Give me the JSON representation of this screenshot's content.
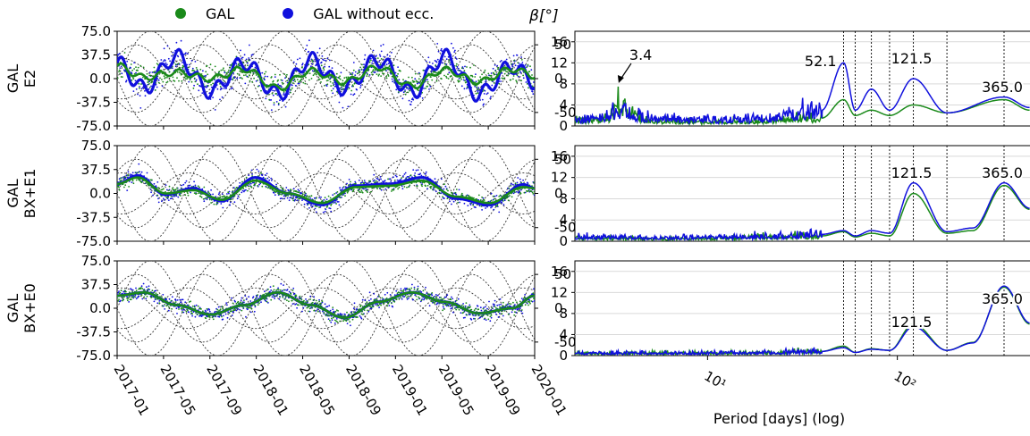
{
  "legend": [
    {
      "label": "GAL",
      "color": "#1a8a1a"
    },
    {
      "label": "GAL without ecc.",
      "color": "#1010dd"
    }
  ],
  "beta_label": "β[°]",
  "colors": {
    "gal": "#1a8a1a",
    "gal_no_ecc": "#1010dd",
    "beta_curves": "#333333",
    "grid": "#d9d9d9"
  },
  "chart_data": [
    {
      "type": "scatter",
      "panel": "time-series",
      "row_label": [
        "GAL",
        "E2"
      ],
      "x_tick_labels": [
        "2017-01",
        "2017-05",
        "2017-09",
        "2018-01",
        "2018-05",
        "2018-09",
        "2019-01",
        "2019-05",
        "2019-09",
        "2020-01"
      ],
      "xlim": [
        "2016-11-20",
        "2020-01-01"
      ],
      "ylim": [
        -75.0,
        75.0
      ],
      "y_tick_labels": [
        "75.0",
        "37.5",
        "0.0",
        "-37.5",
        "-75.0"
      ],
      "y2_label": "β[°]",
      "y2_tick_labels": [
        "50",
        "0",
        "-50"
      ],
      "series": [
        {
          "name": "GAL",
          "smooth": {
            "x": [
              "2016-11-20",
              "2017-02-01",
              "2017-05-01",
              "2017-08-01",
              "2017-11-01",
              "2018-02-01",
              "2018-05-01",
              "2018-08-01",
              "2018-11-01",
              "2019-02-01",
              "2019-05-01",
              "2019-08-01",
              "2019-11-01",
              "2020-01-01"
            ],
            "y": [
              20,
              2,
              10,
              0,
              15,
              -15,
              12,
              -5,
              18,
              -12,
              14,
              -5,
              15,
              5
            ]
          }
        },
        {
          "name": "GAL without ecc.",
          "smooth": {
            "x": [
              "2016-11-20",
              "2017-02-01",
              "2017-05-01",
              "2017-08-01",
              "2017-11-01",
              "2018-02-01",
              "2018-05-01",
              "2018-08-01",
              "2018-11-01",
              "2019-02-01",
              "2019-05-01",
              "2019-08-01",
              "2019-11-01",
              "2020-01-01"
            ],
            "y": [
              25,
              -15,
              35,
              -20,
              25,
              -25,
              30,
              -15,
              30,
              -22,
              35,
              -25,
              20,
              -5
            ]
          }
        }
      ],
      "beta_curves": {
        "amplitudes": [
          70,
          50,
          30
        ],
        "period_days": 365
      }
    },
    {
      "type": "scatter",
      "panel": "time-series",
      "row_label": [
        "GAL",
        "BX+E1"
      ],
      "x_tick_labels": [
        "2017-01",
        "2017-05",
        "2017-09",
        "2018-01",
        "2018-05",
        "2018-09",
        "2019-01",
        "2019-05",
        "2019-09",
        "2020-01"
      ],
      "xlim": [
        "2016-11-20",
        "2020-01-01"
      ],
      "ylim": [
        -75.0,
        75.0
      ],
      "y_tick_labels": [
        "75.0",
        "37.5",
        "0.0",
        "-37.5",
        "-75.0"
      ],
      "y2_label": "β[°]",
      "y2_tick_labels": [
        "50",
        "0",
        "-50"
      ],
      "series": [
        {
          "name": "GAL",
          "smooth": {
            "x": [
              "2016-11-20",
              "2017-01-15",
              "2017-04-01",
              "2017-06-15",
              "2017-09-01",
              "2017-12-01",
              "2018-03-01",
              "2018-06-01",
              "2018-09-01",
              "2018-12-01",
              "2019-03-01",
              "2019-06-01",
              "2019-09-01",
              "2019-12-01",
              "2020-01-01"
            ],
            "y": [
              15,
              25,
              0,
              5,
              -10,
              20,
              0,
              -15,
              10,
              12,
              20,
              -5,
              -15,
              10,
              8
            ]
          }
        },
        {
          "name": "GAL without ecc.",
          "smooth": {
            "x": [
              "2016-11-20",
              "2017-01-15",
              "2017-04-01",
              "2017-06-15",
              "2017-09-01",
              "2017-12-01",
              "2018-03-01",
              "2018-06-01",
              "2018-09-01",
              "2018-12-01",
              "2019-03-01",
              "2019-06-01",
              "2019-09-01",
              "2019-12-01",
              "2020-01-01"
            ],
            "y": [
              15,
              28,
              -2,
              8,
              -12,
              25,
              0,
              -18,
              12,
              15,
              25,
              -8,
              -18,
              14,
              8
            ]
          }
        }
      ],
      "beta_curves": {
        "amplitudes": [
          70,
          50,
          30
        ],
        "period_days": 365
      }
    },
    {
      "type": "scatter",
      "panel": "time-series",
      "row_label": [
        "GAL",
        "BX+E0"
      ],
      "x_tick_labels": [
        "2017-01",
        "2017-05",
        "2017-09",
        "2018-01",
        "2018-05",
        "2018-09",
        "2019-01",
        "2019-05",
        "2019-09",
        "2020-01"
      ],
      "xlim": [
        "2016-11-20",
        "2020-01-01"
      ],
      "ylim": [
        -75.0,
        75.0
      ],
      "y_tick_labels": [
        "75.0",
        "37.5",
        "0.0",
        "-37.5",
        "-75.0"
      ],
      "y2_label": "β[°]",
      "y2_tick_labels": [
        "50",
        "0",
        "-50"
      ],
      "series": [
        {
          "name": "GAL",
          "smooth": {
            "x": [
              "2016-11-20",
              "2017-02-01",
              "2017-05-01",
              "2017-08-01",
              "2017-11-01",
              "2018-02-01",
              "2018-05-01",
              "2018-08-01",
              "2018-11-01",
              "2019-02-01",
              "2019-05-01",
              "2019-08-01",
              "2019-11-01",
              "2020-01-01"
            ],
            "y": [
              20,
              25,
              5,
              -10,
              5,
              25,
              5,
              -15,
              10,
              25,
              10,
              -8,
              0,
              20
            ]
          }
        },
        {
          "name": "GAL without ecc.",
          "smooth": {
            "x": [
              "2016-11-20",
              "2017-02-01",
              "2017-05-01",
              "2017-08-01",
              "2017-11-01",
              "2018-02-01",
              "2018-05-01",
              "2018-08-01",
              "2018-11-01",
              "2019-02-01",
              "2019-05-01",
              "2019-08-01",
              "2019-11-01",
              "2020-01-01"
            ],
            "y": [
              20,
              25,
              5,
              -10,
              5,
              25,
              5,
              -15,
              10,
              25,
              10,
              -8,
              0,
              20
            ]
          }
        }
      ],
      "beta_curves": {
        "amplitudes": [
          70,
          50,
          30
        ],
        "period_days": 365
      }
    },
    {
      "type": "line",
      "panel": "periodogram",
      "row_label": [
        "GAL",
        "E2"
      ],
      "xscale": "log",
      "xlim": [
        2,
        500
      ],
      "ylim": [
        0,
        18
      ],
      "y_tick_labels": [
        "0",
        "4",
        "8",
        "12",
        "16"
      ],
      "grid": true,
      "vlines_days": [
        52.1,
        60,
        73,
        91,
        121.5,
        182.5,
        365
      ],
      "annotations": [
        {
          "text": "3.4",
          "x": 3.4,
          "arrow": true
        },
        {
          "text": "52.1",
          "x": 52.1
        },
        {
          "text": "121.5",
          "x": 121.5
        },
        {
          "text": "365.0",
          "x": 365
        }
      ],
      "series": [
        {
          "name": "GAL",
          "x": [
            2,
            3,
            3.4,
            5,
            10,
            20,
            40,
            52.1,
            60,
            73,
            91,
            121.5,
            182.5,
            365,
            500
          ],
          "y": [
            1,
            1.5,
            4,
            1,
            0.8,
            1,
            1.5,
            5,
            2,
            3,
            2,
            4,
            2.5,
            5,
            3
          ]
        },
        {
          "name": "GAL without ecc.",
          "x": [
            2,
            3,
            3.4,
            5,
            10,
            20,
            40,
            52.1,
            60,
            73,
            91,
            121.5,
            182.5,
            365,
            500
          ],
          "y": [
            1,
            2,
            3,
            1.5,
            1.2,
            1.5,
            3,
            12,
            3,
            7,
            3,
            9,
            2.5,
            5.5,
            3.5
          ]
        }
      ]
    },
    {
      "type": "line",
      "panel": "periodogram",
      "row_label": [
        "GAL",
        "BX+E1"
      ],
      "xscale": "log",
      "xlim": [
        2,
        500
      ],
      "ylim": [
        0,
        18
      ],
      "y_tick_labels": [
        "0",
        "4",
        "8",
        "12",
        "16"
      ],
      "grid": true,
      "vlines_days": [
        52.1,
        60,
        73,
        91,
        121.5,
        182.5,
        365
      ],
      "annotations": [
        {
          "text": "121.5",
          "x": 121.5
        },
        {
          "text": "365.0",
          "x": 365
        }
      ],
      "series": [
        {
          "name": "GAL",
          "x": [
            2,
            5,
            10,
            20,
            40,
            52.1,
            60,
            73,
            91,
            121.5,
            182.5,
            250,
            365,
            500
          ],
          "y": [
            0.6,
            0.5,
            0.6,
            0.8,
            1,
            1.8,
            0.8,
            1.5,
            1,
            9,
            1.5,
            2,
            10.5,
            6
          ]
        },
        {
          "name": "GAL without ecc.",
          "x": [
            2,
            5,
            10,
            20,
            40,
            52.1,
            60,
            73,
            91,
            121.5,
            182.5,
            250,
            365,
            500
          ],
          "y": [
            0.8,
            0.7,
            0.8,
            1,
            1.3,
            2,
            1,
            2,
            1.5,
            11,
            1.8,
            2.5,
            11,
            6.2
          ]
        }
      ]
    },
    {
      "type": "line",
      "panel": "periodogram",
      "row_label": [
        "GAL",
        "BX+E0"
      ],
      "xscale": "log",
      "xlim": [
        2,
        500
      ],
      "ylim": [
        0,
        18
      ],
      "y_tick_labels": [
        "0",
        "4",
        "8",
        "12",
        "16"
      ],
      "grid": true,
      "xlabel": "Period [days] (log)",
      "x_tick_labels": [
        "10¹",
        "10²"
      ],
      "vlines_days": [
        52.1,
        60,
        73,
        91,
        121.5,
        182.5,
        365
      ],
      "annotations": [
        {
          "text": "121.5",
          "x": 121.5
        },
        {
          "text": "365.0",
          "x": 365
        }
      ],
      "series": [
        {
          "name": "GAL",
          "x": [
            2,
            5,
            10,
            20,
            40,
            52.1,
            60,
            73,
            91,
            121.5,
            182.5,
            250,
            365,
            500
          ],
          "y": [
            0.5,
            0.5,
            0.5,
            0.6,
            0.8,
            1.8,
            0.6,
            1.3,
            1,
            6,
            1,
            2.5,
            13,
            6
          ]
        },
        {
          "name": "GAL without ecc.",
          "x": [
            2,
            5,
            10,
            20,
            40,
            52.1,
            60,
            73,
            91,
            121.5,
            182.5,
            250,
            365,
            500
          ],
          "y": [
            0.5,
            0.5,
            0.5,
            0.6,
            0.8,
            1.5,
            0.6,
            1.2,
            1,
            5.5,
            1,
            2.4,
            13.2,
            6.2
          ]
        }
      ]
    }
  ]
}
